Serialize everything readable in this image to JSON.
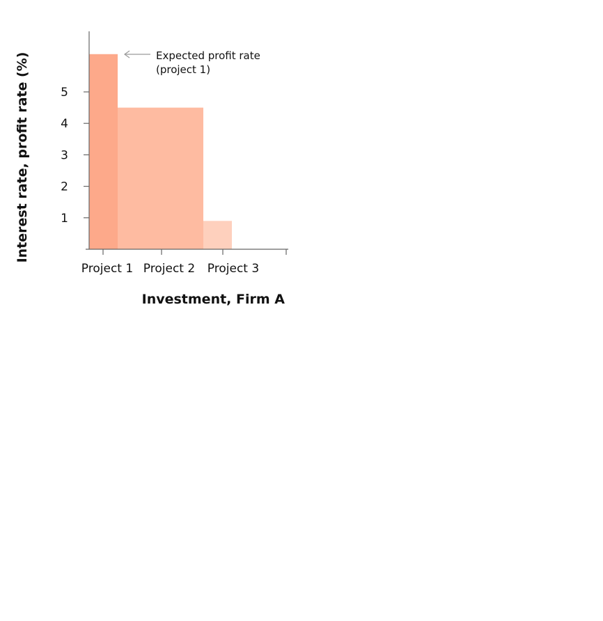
{
  "chart_data": {
    "type": "bar",
    "categories": [
      "Project 1",
      "Project 2",
      "Project 3"
    ],
    "series": [
      {
        "values": [
          6.2,
          4.5,
          0.9
        ],
        "widths": [
          1,
          3,
          1
        ]
      }
    ],
    "xlabel": "Investment, Firm A",
    "ylabel": "Interest rate, profit rate (%)",
    "yticks": [
      1,
      2,
      3,
      4,
      5
    ],
    "ylim": [
      0,
      6.9
    ],
    "grid": false,
    "annotation": {
      "lines": [
        "Expected profit rate",
        "(project 1)"
      ],
      "target": "Project 1"
    },
    "colors": [
      "#fda98a",
      "#febba1",
      "#fed0bd"
    ]
  }
}
